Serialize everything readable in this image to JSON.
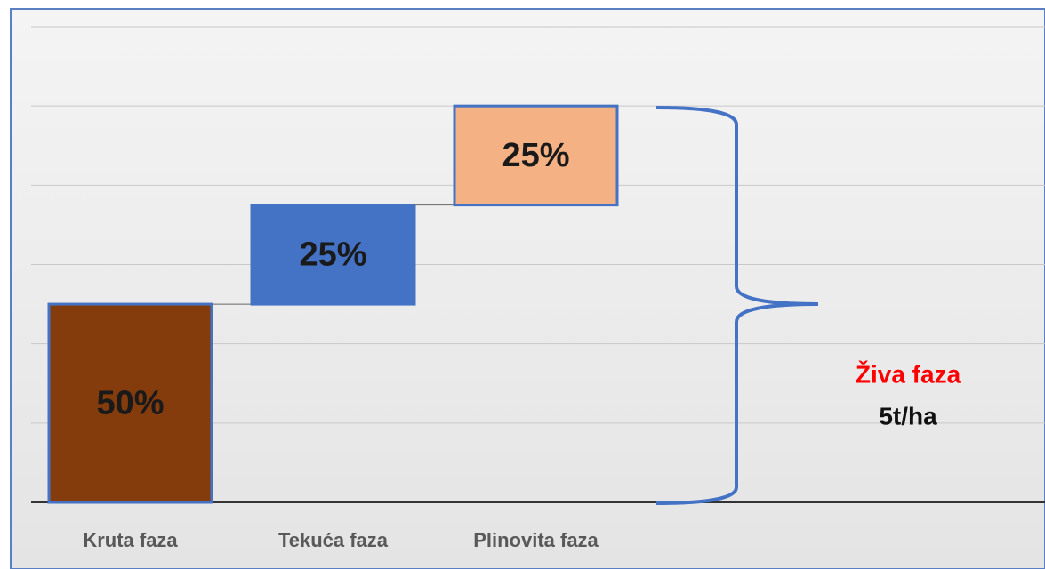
{
  "chart_data": {
    "type": "waterfall",
    "categories": [
      "Kruta faza",
      "Tekuća faza",
      "Plinovita faza"
    ],
    "values": [
      50,
      25,
      25
    ],
    "value_labels": [
      "50%",
      "25%",
      "25%"
    ],
    "colors": [
      "#843c0c",
      "#4472c4",
      "#f4b183"
    ],
    "edge_color": "#4472c4",
    "ylim": [
      0,
      120
    ],
    "yticks": [
      0,
      20,
      40,
      60,
      80,
      100,
      120
    ],
    "grid": true,
    "annotations": [
      "Živa faza",
      "5t/ha"
    ]
  }
}
